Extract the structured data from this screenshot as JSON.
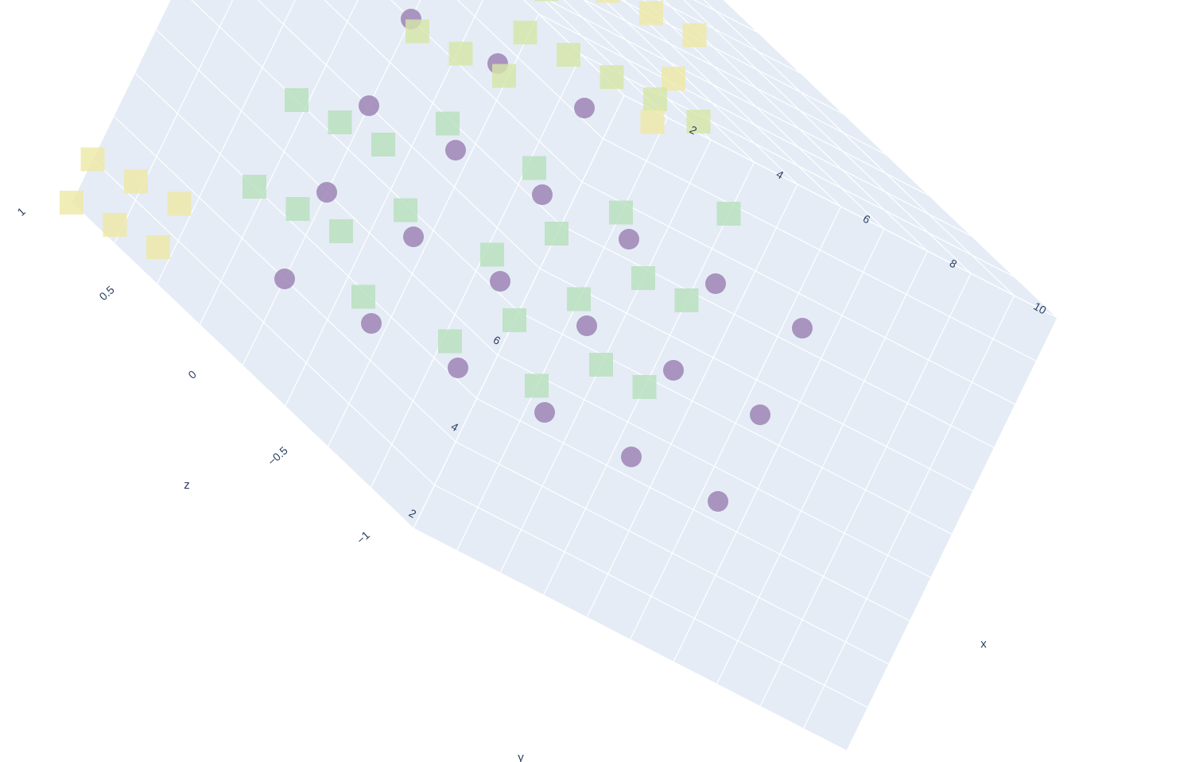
{
  "chart_data": {
    "type": "scatter3d",
    "title": "",
    "axes": {
      "x": {
        "label": "x",
        "range": [
          1,
          11
        ],
        "ticks": [
          2,
          4,
          6,
          8,
          10
        ]
      },
      "y": {
        "label": "y",
        "range": [
          1,
          11
        ],
        "ticks": [
          2,
          4,
          6
        ]
      },
      "z": {
        "label": "z",
        "range": [
          -1,
          1
        ],
        "ticks": [
          -1,
          -0.5,
          0,
          0.5,
          1
        ]
      }
    },
    "colors": {
      "background": "#e5ecf6",
      "grid": "#ffffff",
      "text": "#2a3f5f",
      "circle": "#9e85b5",
      "square_high": "#ede9a5",
      "square_mid": "#d6e6a8",
      "square_low": "#b7e0bc"
    },
    "series": [
      {
        "marker": "circle",
        "points": [
          [
            1,
            3,
            0
          ],
          [
            1,
            5,
            0
          ],
          [
            1,
            7,
            0
          ],
          [
            3,
            3,
            0
          ],
          [
            3,
            5,
            0
          ],
          [
            3,
            7,
            0
          ],
          [
            5,
            3,
            0
          ],
          [
            5,
            5,
            0
          ],
          [
            5,
            7,
            0
          ],
          [
            1,
            9,
            0
          ],
          [
            3,
            9,
            0
          ],
          [
            5,
            9,
            0
          ],
          [
            7,
            3,
            0
          ],
          [
            7,
            5,
            0
          ],
          [
            7,
            7,
            0
          ],
          [
            9,
            3,
            0
          ],
          [
            9,
            5,
            0
          ],
          [
            9,
            7,
            0
          ],
          [
            11,
            3,
            0
          ],
          [
            11,
            5,
            0
          ],
          [
            11,
            7,
            0
          ]
        ]
      },
      {
        "marker": "square",
        "points": [
          [
            1,
            1,
            1
          ],
          [
            1,
            2,
            1
          ],
          [
            2,
            1,
            1
          ],
          [
            2,
            2,
            1
          ],
          [
            3,
            1,
            1
          ],
          [
            3,
            2,
            1
          ],
          [
            1,
            4,
            0.3
          ],
          [
            1,
            6,
            0.3
          ],
          [
            2,
            4,
            0.3
          ],
          [
            2,
            6,
            0.3
          ],
          [
            3,
            4,
            0.3
          ],
          [
            3,
            6,
            0.3
          ],
          [
            4,
            3,
            0.3
          ],
          [
            4,
            5,
            0.3
          ],
          [
            4,
            7,
            0.3
          ],
          [
            6,
            3,
            0.3
          ],
          [
            6,
            5,
            0.3
          ],
          [
            6,
            7,
            0.3
          ],
          [
            4,
            8,
            0.6
          ],
          [
            4,
            9,
            0.6
          ],
          [
            4,
            10,
            0.6
          ],
          [
            5,
            8,
            0.6
          ],
          [
            5,
            10,
            0.6
          ],
          [
            6,
            8,
            0.6
          ],
          [
            6,
            9,
            0.6
          ],
          [
            6,
            10,
            0.6
          ],
          [
            7,
            4,
            0.3
          ],
          [
            7,
            6,
            0.3
          ],
          [
            8,
            3,
            0.3
          ],
          [
            8,
            5,
            0.3
          ],
          [
            8,
            7,
            0.3
          ],
          [
            9,
            4,
            0.3
          ],
          [
            9,
            6,
            0.3
          ],
          [
            10,
            4,
            0.3
          ],
          [
            10,
            6,
            0.3
          ],
          [
            10,
            8,
            0.3
          ],
          [
            7,
            9,
            0.6
          ],
          [
            8,
            9,
            0.6
          ],
          [
            9,
            9,
            0.6
          ],
          [
            10,
            9,
            0.6
          ],
          [
            11,
            8,
            1
          ],
          [
            11,
            9,
            1
          ],
          [
            11,
            10,
            1
          ],
          [
            10,
            10,
            1
          ],
          [
            9,
            10,
            1
          ],
          [
            8,
            10,
            1
          ],
          [
            7,
            10,
            1
          ],
          [
            2,
            8,
            1
          ],
          [
            2,
            9,
            1
          ],
          [
            2,
            10,
            1
          ],
          [
            1,
            10,
            1
          ],
          [
            3,
            10,
            1
          ]
        ]
      }
    ],
    "grid": true,
    "legend": "none"
  }
}
